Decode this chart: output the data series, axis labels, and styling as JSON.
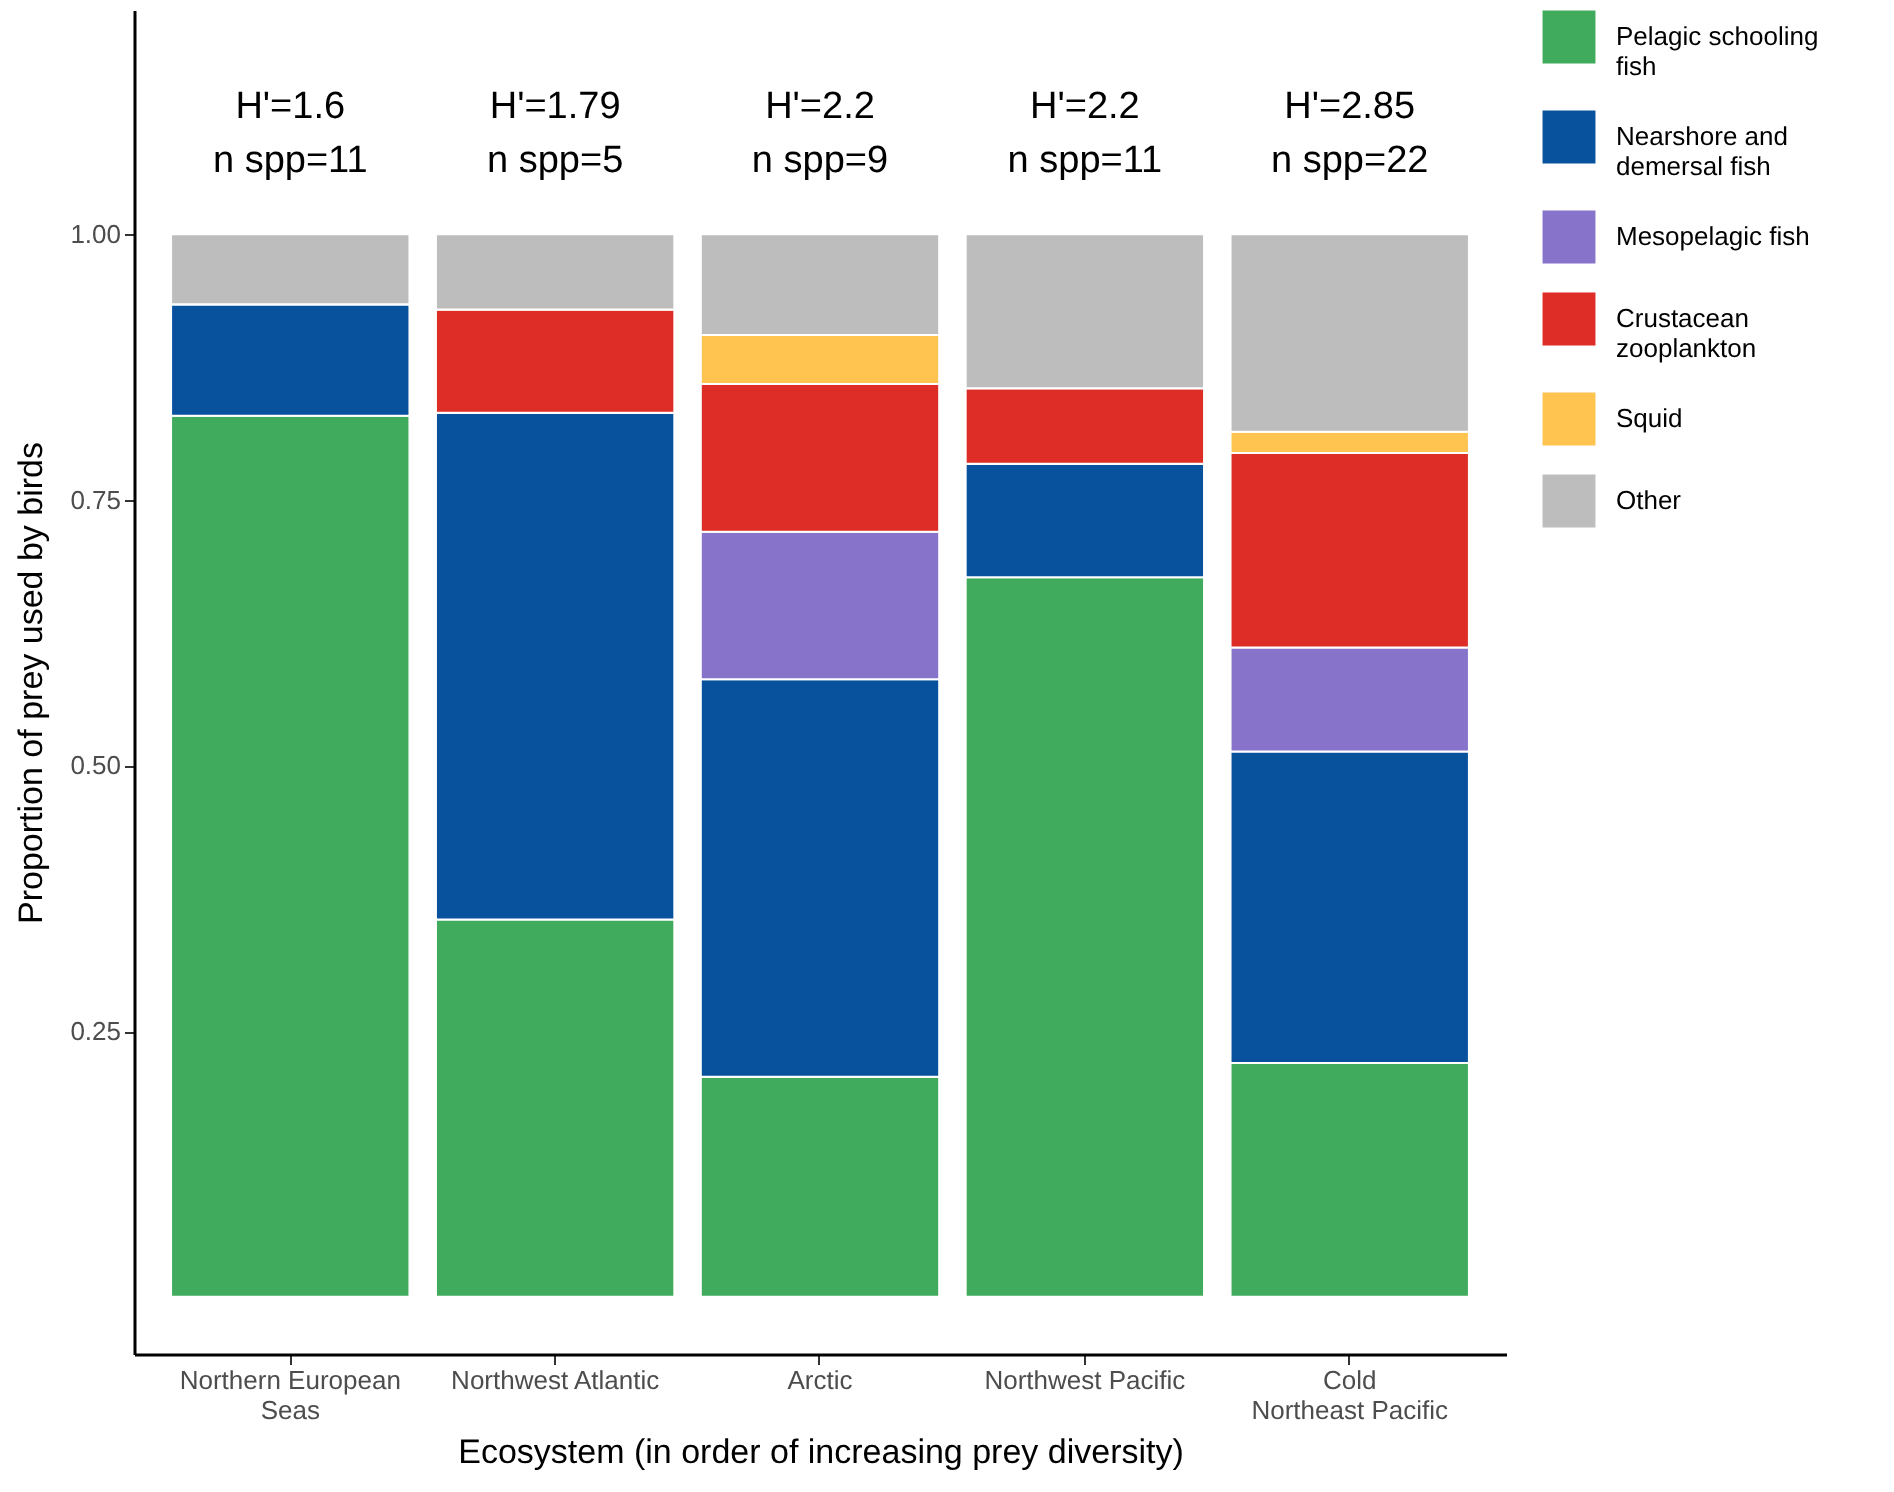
{
  "chart_data": {
    "type": "bar",
    "stacked": true,
    "xlabel": "Ecosystem (in order of increasing prey diversity)",
    "ylabel": "Proportion of prey used by birds",
    "categories": [
      "Northern European\nSeas",
      "Northwest Atlantic",
      "Arctic",
      "Northwest Pacific",
      "Cold\nNortheast Pacific"
    ],
    "ylim": [
      -0.054,
      1.211
    ],
    "yticks": [
      0.25,
      {
        "value": 0.5,
        "label": "0.50"
      },
      0.75,
      {
        "value": 1,
        "label": "1.00"
      }
    ],
    "series": [
      {
        "name": "Pelagic schooling fish",
        "color": "#41ab5d",
        "values": [
          0.829,
          0.355,
          0.207,
          0.677,
          0.22
        ]
      },
      {
        "name": "Nearshore and demersal fish",
        "color": "#08519c",
        "values": [
          0.105,
          0.477,
          0.374,
          0.107,
          0.293
        ]
      },
      {
        "name": "Mesopelagic fish",
        "color": "#8773c9",
        "values": [
          0,
          0,
          0.139,
          0,
          0.098
        ]
      },
      {
        "name": "Crustacean zooplankton",
        "color": "#de2d26",
        "values": [
          0,
          0.097,
          0.139,
          0.071,
          0.183
        ]
      },
      {
        "name": "Squid",
        "color": "#fec44f",
        "values": [
          0,
          0,
          0.046,
          0,
          0.02
        ]
      },
      {
        "name": "Other",
        "color": "#bdbdbd",
        "values": [
          0.066,
          0.071,
          0.095,
          0.145,
          0.186
        ]
      }
    ],
    "annotations": [
      "H'=1.6\nn spp=11",
      "H'=1.79\nn spp=5",
      "H'=2.2\nn spp=9",
      "H'=2.2\nn spp=11",
      "H'=2.85\nn spp=22"
    ],
    "grid": false,
    "legend": "right"
  }
}
